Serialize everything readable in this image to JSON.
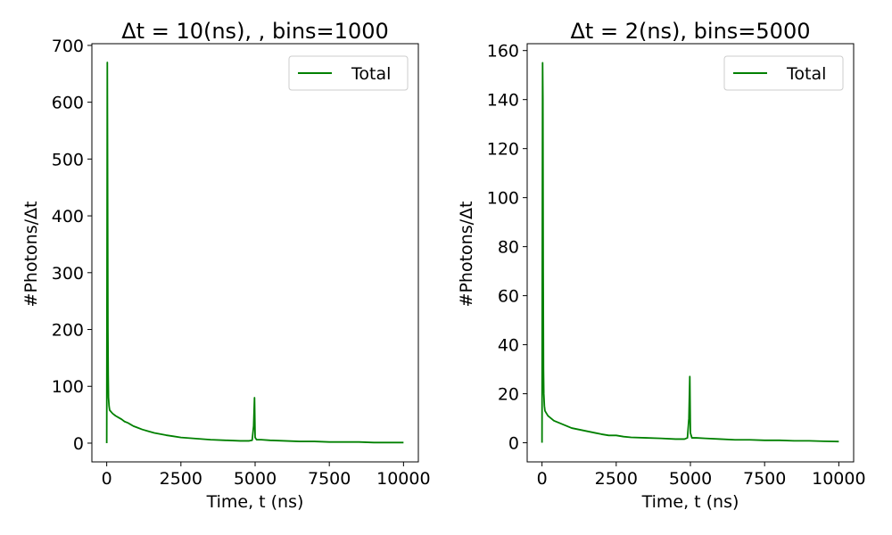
{
  "chart_data": [
    {
      "type": "line",
      "title": "Δt = 10(ns), , bins=1000",
      "xlabel": "Time, t (ns)",
      "ylabel": "#Photons/Δt",
      "xlim": [
        -500,
        10500
      ],
      "ylim": [
        -33,
        703
      ],
      "xticks": [
        0,
        2500,
        5000,
        7500,
        10000
      ],
      "yticks": [
        0,
        100,
        200,
        300,
        400,
        500,
        600,
        700
      ],
      "grid": false,
      "legend": "top-right",
      "color": "#008000",
      "series": [
        {
          "name": "Total",
          "x": [
            0,
            10,
            20,
            30,
            40,
            50,
            60,
            80,
            100,
            150,
            200,
            300,
            400,
            500,
            600,
            700,
            800,
            900,
            1000,
            1200,
            1400,
            1600,
            1800,
            2000,
            2250,
            2500,
            2750,
            3000,
            3500,
            4000,
            4500,
            4800,
            4900,
            4950,
            4980,
            5000,
            5050,
            5200,
            5500,
            6000,
            6500,
            7000,
            7500,
            8000,
            8500,
            9000,
            9500,
            10000
          ],
          "y": [
            0,
            300,
            670,
            450,
            200,
            120,
            80,
            65,
            58,
            55,
            52,
            48,
            45,
            42,
            38,
            36,
            33,
            30,
            28,
            24,
            21,
            18,
            16,
            14,
            12,
            10,
            9,
            8,
            6,
            5,
            4,
            4,
            5,
            30,
            80,
            10,
            6,
            6,
            5,
            4,
            3,
            3,
            2,
            2,
            2,
            1,
            1,
            1
          ]
        }
      ]
    },
    {
      "type": "line",
      "title": "Δt = 2(ns), bins=5000",
      "xlabel": "Time, t (ns)",
      "ylabel": "#Photons/Δt",
      "xlim": [
        -500,
        10500
      ],
      "ylim": [
        -7.8,
        162.8
      ],
      "xticks": [
        0,
        2500,
        5000,
        7500,
        10000
      ],
      "yticks": [
        0,
        20,
        40,
        60,
        80,
        100,
        120,
        140,
        160
      ],
      "grid": false,
      "legend": "top-right",
      "color": "#008000",
      "series": [
        {
          "name": "Total",
          "x": [
            0,
            10,
            20,
            30,
            40,
            50,
            60,
            80,
            100,
            150,
            200,
            300,
            400,
            500,
            600,
            700,
            800,
            900,
            1000,
            1200,
            1400,
            1600,
            1800,
            2000,
            2250,
            2500,
            2750,
            3000,
            3500,
            4000,
            4500,
            4800,
            4900,
            4950,
            4980,
            5000,
            5050,
            5200,
            5500,
            6000,
            6500,
            7000,
            7500,
            8000,
            8500,
            9000,
            9500,
            10000
          ],
          "y": [
            0,
            80,
            155,
            140,
            70,
            30,
            20,
            15,
            13,
            12,
            11,
            10,
            9,
            8.5,
            8,
            7.5,
            7,
            6.5,
            6,
            5.5,
            5,
            4.5,
            4,
            3.5,
            3,
            3,
            2.5,
            2.2,
            2,
            1.8,
            1.5,
            1.5,
            2,
            10,
            27,
            4,
            2,
            2,
            1.8,
            1.5,
            1.2,
            1.2,
            1,
            1,
            0.8,
            0.8,
            0.6,
            0.5
          ]
        }
      ]
    }
  ]
}
